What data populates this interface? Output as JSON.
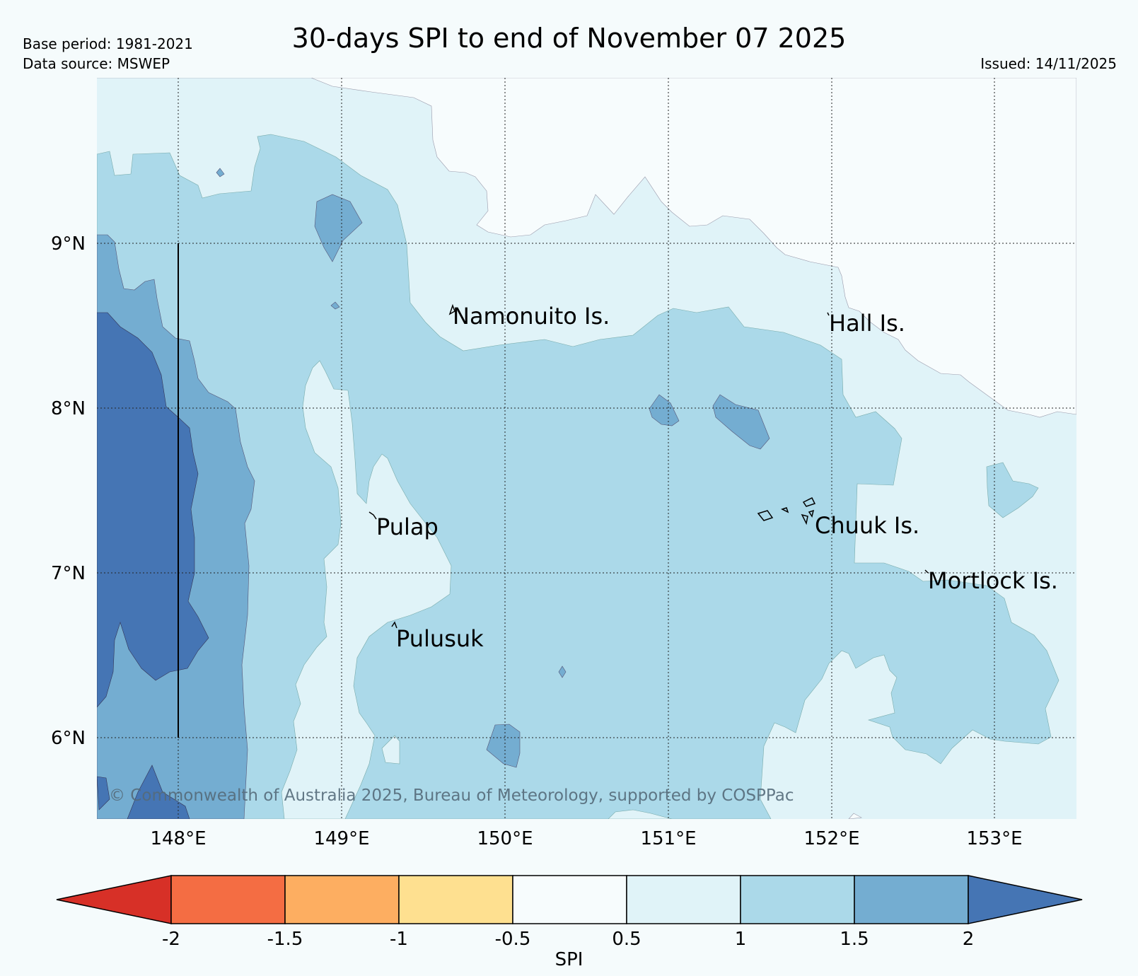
{
  "title": "30-days SPI to end of November 07 2025",
  "meta": {
    "base_period": "Base period: 1981-2021",
    "data_source": "Data source: MSWEP",
    "issued": "Issued: 14/11/2025"
  },
  "map": {
    "lat_labels": [
      "9°N",
      "8°N",
      "7°N",
      "6°N"
    ],
    "lon_labels": [
      "148°E",
      "149°E",
      "150°E",
      "151°E",
      "152°E",
      "153°E"
    ],
    "places": [
      {
        "key": "namonuito",
        "label": "Namonuito Is."
      },
      {
        "key": "hall",
        "label": "Hall Is."
      },
      {
        "key": "pulap",
        "label": "Pulap"
      },
      {
        "key": "chuuk",
        "label": "Chuuk Is."
      },
      {
        "key": "mortlock",
        "label": "Mortlock Is."
      },
      {
        "key": "pulusuk",
        "label": "Pulusuk"
      }
    ],
    "copyright": "© Commonwealth of Australia 2025, Bureau of Meteorology, supported by COSPPac"
  },
  "colorbar": {
    "label": "SPI",
    "ticks": [
      "-2",
      "-1.5",
      "-1",
      "-0.5",
      "0.5",
      "1",
      "1.5",
      "2"
    ],
    "colors": {
      "below_-2": "#d73027",
      "-2_-1.5": "#f46d43",
      "-1.5_-1": "#fdae61",
      "-1_-0.5": "#fee090",
      "-0.5_0.5": "#f7fcfd",
      "0.5_1": "#e0f3f8",
      "1_1.5": "#abd9e9",
      "1.5_2": "#74add1",
      "above_2": "#4575b4"
    }
  }
}
